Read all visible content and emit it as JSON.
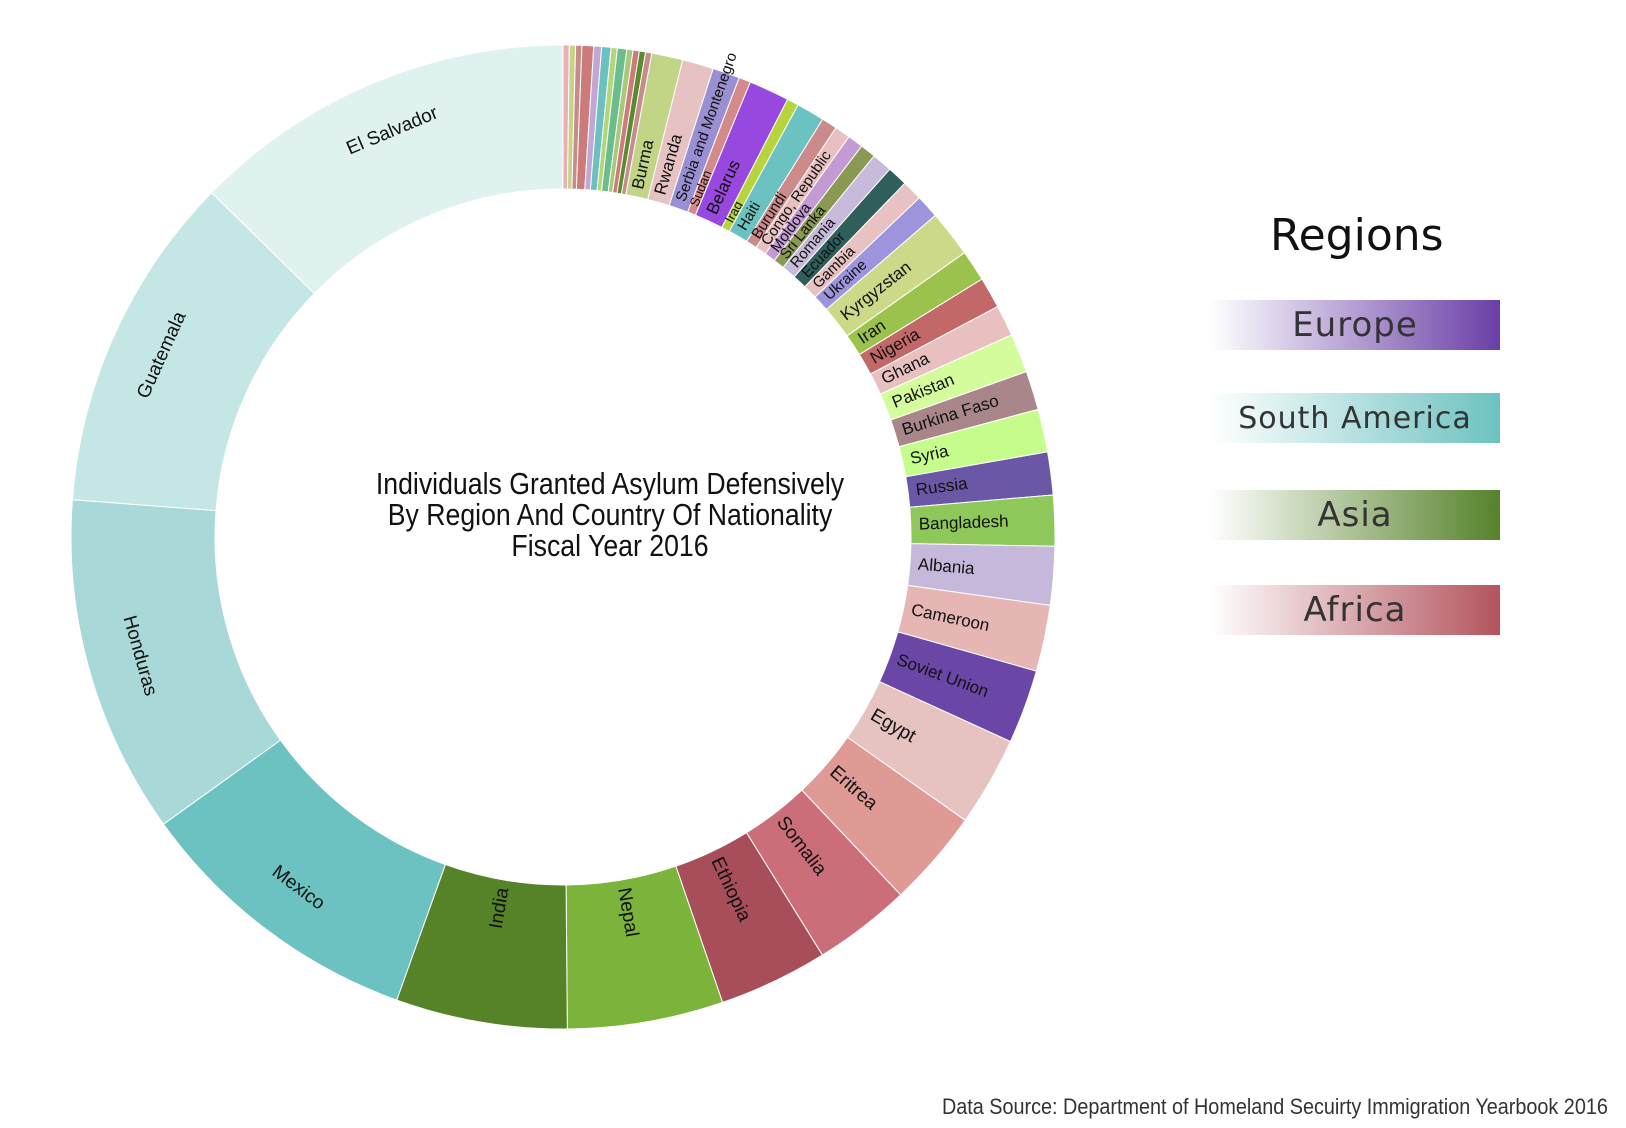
{
  "chart_data": {
    "type": "pie",
    "title": [
      "Individuals Granted Asylum Defensively",
      "By Region And Country Of Nationality",
      "Fiscal Year 2016"
    ],
    "legend_title": "Regions",
    "legend_placement": "right",
    "regions": [
      {
        "name": "Europe",
        "color": "#6a3ea6"
      },
      {
        "name": "South America",
        "color": "#6cc2c0"
      },
      {
        "name": "Asia",
        "color": "#56822a"
      },
      {
        "name": "Africa",
        "color": "#b3545e"
      }
    ],
    "slices": [
      {
        "label": "",
        "value": 8,
        "color": "#e8b0b0"
      },
      {
        "label": "",
        "value": 8,
        "color": "#c6d48a"
      },
      {
        "label": "",
        "value": 8,
        "color": "#c78b8b"
      },
      {
        "label": "",
        "value": 15,
        "color": "#cc7a7a"
      },
      {
        "label": "",
        "value": 10,
        "color": "#c1a6d6"
      },
      {
        "label": "",
        "value": 12,
        "color": "#6bc1bf"
      },
      {
        "label": "",
        "value": 8,
        "color": "#b2d67a"
      },
      {
        "label": "",
        "value": 12,
        "color": "#6cbd8c"
      },
      {
        "label": "",
        "value": 8,
        "color": "#a8c87a"
      },
      {
        "label": "",
        "value": 8,
        "color": "#cc7a7a"
      },
      {
        "label": "",
        "value": 8,
        "color": "#5c8a2e"
      },
      {
        "label": "",
        "value": 8,
        "color": "#c78b8b"
      },
      {
        "label": "Burma",
        "value": 40,
        "color": "#c2d485"
      },
      {
        "label": "Rwanda",
        "value": 40,
        "color": "#e6c2c2"
      },
      {
        "label": "Serbia and Montenegro",
        "value": 35,
        "color": "#9b8fd3"
      },
      {
        "label": "Sudan",
        "value": 15,
        "color": "#d58a8a"
      },
      {
        "label": "Belarus",
        "value": 52,
        "color": "#9748df"
      },
      {
        "label": "Iraq",
        "value": 15,
        "color": "#b8d43c"
      },
      {
        "label": "Haiti",
        "value": 36,
        "color": "#6cc2c0"
      },
      {
        "label": "Burundi",
        "value": 20,
        "color": "#cc8a8a"
      },
      {
        "label": "Congo, Republic",
        "value": 20,
        "color": "#e8c0c0"
      },
      {
        "label": "Moldova",
        "value": 20,
        "color": "#c49ad2"
      },
      {
        "label": "Sri Lanka",
        "value": 20,
        "color": "#8a9a55"
      },
      {
        "label": "Romania",
        "value": 26,
        "color": "#c8bada"
      },
      {
        "label": "Ecuador",
        "value": 26,
        "color": "#2e5f5a"
      },
      {
        "label": "Gambia",
        "value": 26,
        "color": "#e8c2c2"
      },
      {
        "label": "Ukraine",
        "value": 30,
        "color": "#9c94dc"
      },
      {
        "label": "Kyrgyzstan",
        "value": 60,
        "color": "#ccd988"
      },
      {
        "label": "Iran",
        "value": 40,
        "color": "#9cc24e"
      },
      {
        "label": "Nigeria",
        "value": 40,
        "color": "#c26868"
      },
      {
        "label": "Ghana",
        "value": 40,
        "color": "#e8c0c0"
      },
      {
        "label": "Pakistan",
        "value": 50,
        "color": "#d4fc9c"
      },
      {
        "label": "Burkina Faso",
        "value": 50,
        "color": "#a8868a"
      },
      {
        "label": "Syria",
        "value": 55,
        "color": "#c6fc8c"
      },
      {
        "label": "Russia",
        "value": 55,
        "color": "#6a58a6"
      },
      {
        "label": "Bangladesh",
        "value": 65,
        "color": "#8ec85a"
      },
      {
        "label": "Albania",
        "value": 75,
        "color": "#c6b8da"
      },
      {
        "label": "Cameroon",
        "value": 85,
        "color": "#e6b6b4"
      },
      {
        "label": "Soviet Union",
        "value": 95,
        "color": "#6a46a6"
      },
      {
        "label": "Egypt",
        "value": 115,
        "color": "#e6c2c0"
      },
      {
        "label": "Eritrea",
        "value": 125,
        "color": "#e09a96"
      },
      {
        "label": "Somalia",
        "value": 125,
        "color": "#cc6e7a"
      },
      {
        "label": "Ethiopia",
        "value": 140,
        "color": "#a84e5a"
      },
      {
        "label": "Nepal",
        "value": 200,
        "color": "#7cb33a"
      },
      {
        "label": "India",
        "value": 220,
        "color": "#568228"
      },
      {
        "label": "Mexico",
        "value": 375,
        "color": "#6cc2c0"
      },
      {
        "label": "Honduras",
        "value": 435,
        "color": "#a8d8d8"
      },
      {
        "label": "Guatemala",
        "value": 435,
        "color": "#c4e6e4"
      },
      {
        "label": "El Salvador",
        "value": 495,
        "color": "#e0f2f0"
      }
    ]
  },
  "legend": {
    "title": "Regions",
    "items": [
      {
        "label": "Europe",
        "color": "#6a3ea6"
      },
      {
        "label": "South America",
        "color": "#6cc2c0"
      },
      {
        "label": "Asia",
        "color": "#56822a"
      },
      {
        "label": "Africa",
        "color": "#b3545e"
      }
    ]
  },
  "source": "Data Source: Department of Homeland Secuirty Immigration Yearbook 2016"
}
